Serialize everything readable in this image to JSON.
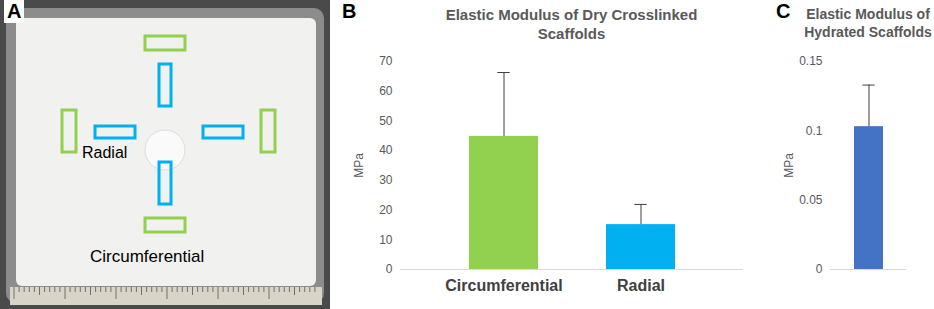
{
  "photo": {
    "panel_label": "A",
    "labels": {
      "radial": "Radial",
      "circumferential": "Circumferential"
    },
    "colors": {
      "radial": "#00b0f0",
      "circumferential": "#92d050"
    }
  },
  "chart_data": [
    {
      "type": "bar",
      "panel_label": "B",
      "title": "Elastic Modulus of Dry Crosslinked Scaffolds",
      "y_label": "MPa",
      "categories": [
        "Circumferential",
        "Radial"
      ],
      "values": [
        44.8,
        15.1
      ],
      "errors": [
        21.5,
        6.8
      ],
      "colors": [
        "#92d050",
        "#00b0f0"
      ],
      "ylim": [
        0,
        70
      ],
      "yticks": [
        0,
        10,
        20,
        30,
        40,
        50,
        60,
        70
      ],
      "grid": false
    },
    {
      "type": "bar",
      "panel_label": "C",
      "title": "Elastic Modulus of Hydrated Scaffolds",
      "y_label": "MPa",
      "categories": [
        null
      ],
      "values": [
        0.103
      ],
      "errors": [
        0.03
      ],
      "colors": [
        "#4472c4"
      ],
      "ylim": [
        0,
        0.15
      ],
      "yticks": [
        0,
        0.05,
        0.1,
        0.15
      ],
      "grid": false
    }
  ]
}
